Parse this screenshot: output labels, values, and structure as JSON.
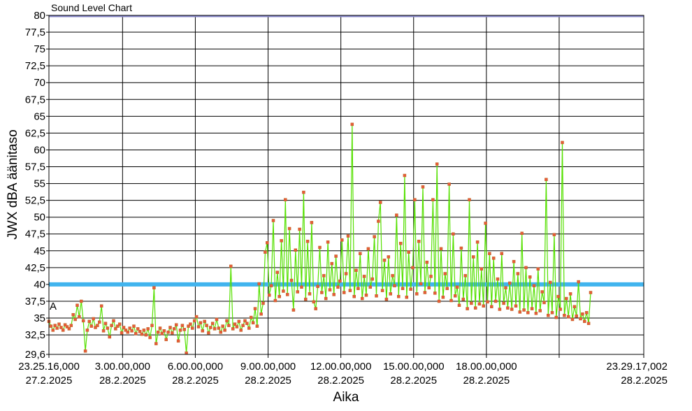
{
  "chart_data": {
    "type": "line",
    "title": "Sound Level Chart",
    "xlabel": "Aika",
    "ylabel": "JWX dBA äänitaso",
    "ylim": [
      29.6,
      80
    ],
    "yticks": [
      "80",
      "77,5",
      "75",
      "72,5",
      "70",
      "67,5",
      "65",
      "62,5",
      "60",
      "57,5",
      "55",
      "52,5",
      "50",
      "47,5",
      "45",
      "42,5",
      "40",
      "37,5",
      "35",
      "32,5",
      "29,6"
    ],
    "xlim_hours": [
      -0.0356,
      24.4881
    ],
    "xticks": [
      {
        "h": -0.0356,
        "time": "23.25.16,000",
        "date": "27.2.2025"
      },
      {
        "h": 3,
        "time": "3.00.00,000",
        "date": "28.2.2025"
      },
      {
        "h": 6,
        "time": "6.00.00,000",
        "date": "28.2.2025"
      },
      {
        "h": 9,
        "time": "9.00.00,000",
        "date": "28.2.2025"
      },
      {
        "h": 12,
        "time": "12.00.00,000",
        "date": "28.2.2025"
      },
      {
        "h": 15,
        "time": "15.00.00,000",
        "date": "28.2.2025"
      },
      {
        "h": 18,
        "time": "18.00.00,000",
        "date": "28.2.2025"
      },
      {
        "h": 21,
        "time": "",
        "date": ""
      },
      {
        "h": 24.4881,
        "time": "23.29.17,002",
        "date": "28.2.2025"
      }
    ],
    "grid": true,
    "threshold": {
      "value": 40,
      "color": "#41b4ee"
    },
    "top_reference": {
      "value": 80,
      "color": "#8888cc"
    },
    "annotations": [
      {
        "text": "A",
        "value": 37.5
      }
    ],
    "series": [
      {
        "line_color": "#55e000",
        "marker_color": "#e85a3a",
        "samples_per_hour": 12,
        "values": [
          34.5,
          33.8,
          33.2,
          33.9,
          33.5,
          34.1,
          33.6,
          33.2,
          34.0,
          33.7,
          33.4,
          33.9,
          35.5,
          34.8,
          36.9,
          35.2,
          37.5,
          34.6,
          30.1,
          33.2,
          34.5,
          33.8,
          34.9,
          33.6,
          33.9,
          34.4,
          36.8,
          33.1,
          34.2,
          33.5,
          32.2,
          33.9,
          34.6,
          33.4,
          33.8,
          34.1,
          32.8,
          33.6,
          33.2,
          32.9,
          33.5,
          33.1,
          33.8,
          32.7,
          33.4,
          33.0,
          32.6,
          33.2,
          32.5,
          33.4,
          32.1,
          33.9,
          39.5,
          31.2,
          32.9,
          33.5,
          32.7,
          33.1,
          31.8,
          32.9,
          33.6,
          32.8,
          33.4,
          34.0,
          31.6,
          33.2,
          33.9,
          33.3,
          29.8,
          33.8,
          34.1,
          33.5,
          34.6,
          35.2,
          33.7,
          34.3,
          33.1,
          34.5,
          33.9,
          32.8,
          33.6,
          34.2,
          33.4,
          34.8,
          33.5,
          32.9,
          33.8,
          33.2,
          34.6,
          33.9,
          42.7,
          33.4,
          34.1,
          33.7,
          34.5,
          33.2,
          33.9,
          34.6,
          34.2,
          33.5,
          35.1,
          34.3,
          36.4,
          33.8,
          40.1,
          35.6,
          37.2,
          44.8,
          46.2,
          38.4,
          39.8,
          49.5,
          37.6,
          41.8,
          38.2,
          46.5,
          39.0,
          52.6,
          38.5,
          48.3,
          40.6,
          36.2,
          45.1,
          38.9,
          48.2,
          39.6,
          53.7,
          37.8,
          46.4,
          38.6,
          49.2,
          37.4,
          36.4,
          39.7,
          45.5,
          38.8,
          41.3,
          37.9,
          46.3,
          39.2,
          43.1,
          38.5,
          44.2,
          39.6,
          40.5,
          46.6,
          38.8,
          41.6,
          47.2,
          39.1,
          63.8,
          38.2,
          42.1,
          39.4,
          44.6,
          37.9,
          41.2,
          38.4,
          45.3,
          39.6,
          40.8,
          47.1,
          38.3,
          49.4,
          52.2,
          39.1,
          43.6,
          37.8,
          44.1,
          38.6,
          41.3,
          39.8,
          50.3,
          38.2,
          46.1,
          39.4,
          56.2,
          38.1,
          44.8,
          39.3,
          42.5,
          52.6,
          38.6,
          46.4,
          40.1,
          54.5,
          38.8,
          43.3,
          39.5,
          41.2,
          52.6,
          38.7,
          57.9,
          37.5,
          45.3,
          38.1,
          41.6,
          39.4,
          54.9,
          37.6,
          47.5,
          38.3,
          39.6,
          36.9,
          45.4,
          37.8,
          41.3,
          36.4,
          52.6,
          37.2,
          44.1,
          36.5,
          46.3,
          37.1,
          42.3,
          36.8,
          49.1,
          37.4,
          44.6,
          36.7,
          43.9,
          37.5,
          40.8,
          36.3,
          44.6,
          37.2,
          39.5,
          36.5,
          40.2,
          36.3,
          43.4,
          36.8,
          41.6,
          35.9,
          47.6,
          36.2,
          42.5,
          35.8,
          41.1,
          36.4,
          39.8,
          35.7,
          42.3,
          36.1,
          38.9,
          37.3,
          55.6,
          35.4,
          40.3,
          35.8,
          47.4,
          35.1,
          38.2,
          36.3,
          61.1,
          35.4,
          37.9,
          35.2,
          38.6,
          34.8,
          36.7,
          35.3,
          40.4,
          34.9,
          35.6,
          34.5,
          35.8,
          34.2,
          38.8
        ]
      }
    ]
  }
}
